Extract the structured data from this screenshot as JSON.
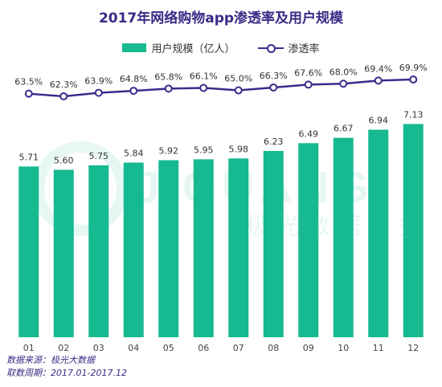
{
  "chart_data": {
    "type": "bar",
    "title": "2017年网络购物app渗透率及用户规模",
    "categories": [
      "01",
      "02",
      "03",
      "04",
      "05",
      "06",
      "07",
      "08",
      "09",
      "10",
      "11",
      "12"
    ],
    "series": [
      {
        "name": "用户规模（亿人）",
        "type": "bar",
        "values": [
          5.71,
          5.6,
          5.75,
          5.84,
          5.92,
          5.95,
          5.98,
          6.23,
          6.49,
          6.67,
          6.94,
          7.13
        ],
        "labels": [
          "5.71",
          "5.60",
          "5.75",
          "5.84",
          "5.92",
          "5.95",
          "5.98",
          "6.23",
          "6.49",
          "6.67",
          "6.94",
          "7.13"
        ]
      },
      {
        "name": "渗透率",
        "type": "line",
        "values": [
          63.5,
          62.3,
          63.9,
          64.8,
          65.8,
          66.1,
          65.0,
          66.3,
          67.6,
          68.0,
          69.4,
          69.9
        ],
        "labels": [
          "63.5%",
          "62.3%",
          "63.9%",
          "64.8%",
          "65.8%",
          "66.1%",
          "65.0%",
          "66.3%",
          "67.6%",
          "68.0%",
          "69.4%",
          "69.9%"
        ]
      }
    ],
    "colors": {
      "bar": "#17b990",
      "line": "#3e2a8c",
      "title": "#3a2a86"
    },
    "grid": false
  },
  "watermark": {
    "mark": "JIGUANG",
    "text": "极光数据服务"
  },
  "footer": {
    "source": "数据来源：极光大数据",
    "period": "取数周期：2017.01-2017.12"
  }
}
